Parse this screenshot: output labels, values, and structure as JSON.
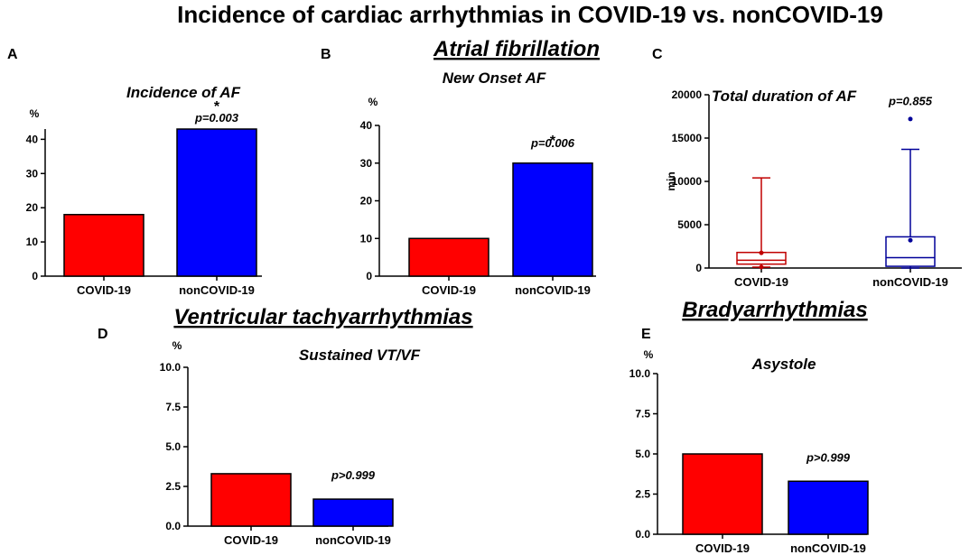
{
  "figure_title": "Incidence of cardiac arrhythmias in COVID-19 vs. nonCOVID-19",
  "sections": {
    "af": "Atrial fibrillation",
    "vt": "Ventricular tachyarrhythmias",
    "brady": "Bradyarrhythmias"
  },
  "colors": {
    "covid": "#ff0000",
    "noncovid": "#0000ff",
    "box_covid": "#c00000",
    "box_noncovid": "#000099"
  },
  "chart_data": [
    {
      "id": "A",
      "panel_label": "A",
      "type": "bar",
      "title": "Incidence of AF",
      "ylabel": "%",
      "categories": [
        "COVID-19",
        "nonCOVID-19"
      ],
      "values": [
        18,
        43
      ],
      "ylim": [
        0,
        43
      ],
      "yticks": [
        0,
        10,
        20,
        30,
        40
      ],
      "ytick_labels": [
        "0",
        "10",
        "20",
        "30",
        "40"
      ],
      "annotation": {
        "text": "p=0.003",
        "star": "*",
        "over": 1
      }
    },
    {
      "id": "B",
      "panel_label": "B",
      "type": "bar",
      "title": "New Onset AF",
      "ylabel": "%",
      "categories": [
        "COVID-19",
        "nonCOVID-19"
      ],
      "values": [
        10,
        30
      ],
      "ylim": [
        0,
        40
      ],
      "yticks": [
        0,
        10,
        20,
        30,
        40
      ],
      "ytick_labels": [
        "0",
        "10",
        "20",
        "30",
        "40"
      ],
      "annotation": {
        "text": "p=0.006",
        "star": "*",
        "over": 1
      }
    },
    {
      "id": "C",
      "panel_label": "C",
      "type": "box",
      "title": "Total duration of AF",
      "ylabel": "min",
      "categories": [
        "COVID-19",
        "nonCOVID-19"
      ],
      "boxes": [
        {
          "min": 100,
          "q1": 450,
          "median": 900,
          "q3": 1800,
          "max": 10400,
          "outliers": [
            100,
            1750
          ]
        },
        {
          "min": 0,
          "q1": 200,
          "median": 1200,
          "q3": 3600,
          "max": 13700,
          "outliers": [
            3200,
            17200
          ]
        }
      ],
      "ylim": [
        0,
        20000
      ],
      "yticks": [
        0,
        5000,
        10000,
        15000,
        20000
      ],
      "ytick_labels": [
        "0",
        "5000",
        "10000",
        "15000",
        "20000"
      ],
      "annotation": {
        "text": "p=0.855",
        "star": "",
        "over": 1
      }
    },
    {
      "id": "D",
      "panel_label": "D",
      "type": "bar",
      "title": "Sustained VT/VF",
      "ylabel": "%",
      "categories": [
        "COVID-19",
        "nonCOVID-19"
      ],
      "values": [
        3.3,
        1.7
      ],
      "ylim": [
        0,
        10
      ],
      "yticks": [
        0,
        2.5,
        5,
        7.5,
        10
      ],
      "ytick_labels": [
        "0.0",
        "2.5",
        "5.0",
        "7.5",
        "10.0"
      ],
      "annotation": {
        "text": "p>0.999",
        "star": "",
        "over": 1
      }
    },
    {
      "id": "E",
      "panel_label": "E",
      "type": "bar",
      "title": "Asystole",
      "ylabel": "%",
      "categories": [
        "COVID-19",
        "nonCOVID-19"
      ],
      "values": [
        5.0,
        3.3
      ],
      "ylim": [
        0,
        10
      ],
      "yticks": [
        0,
        2.5,
        5,
        7.5,
        10
      ],
      "ytick_labels": [
        "0.0",
        "2.5",
        "5.0",
        "7.5",
        "10.0"
      ],
      "annotation": {
        "text": "p>0.999",
        "star": "",
        "over": 1
      }
    }
  ]
}
